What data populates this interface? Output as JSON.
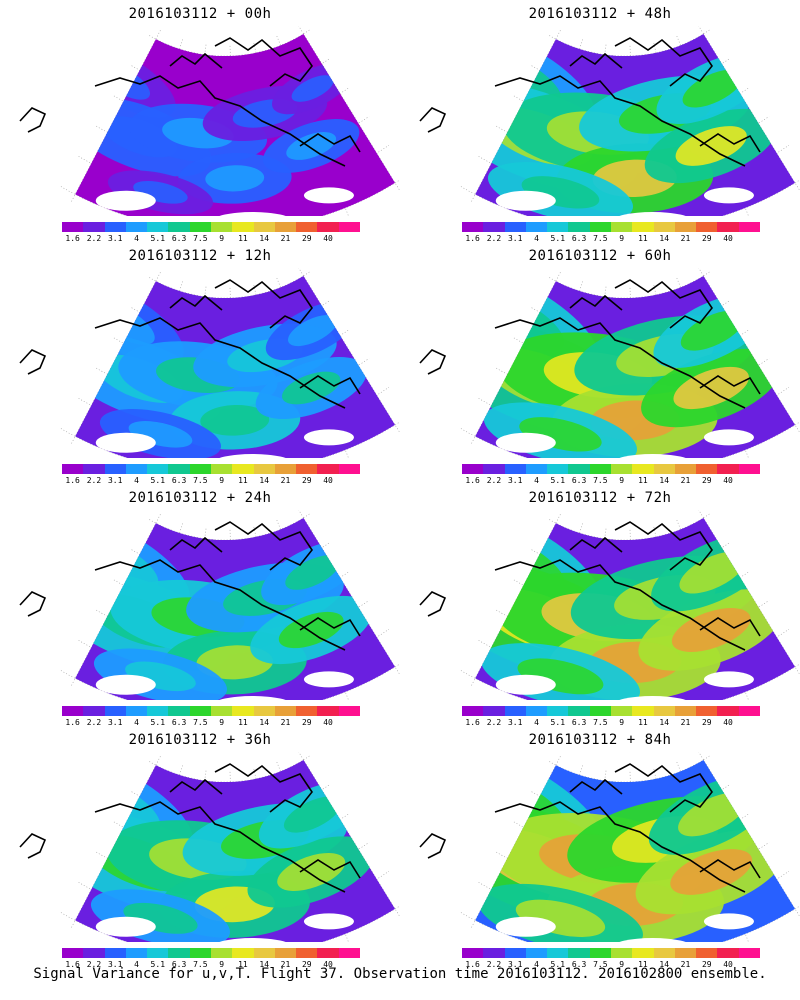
{
  "caption": "Signal Variance for u,v,T. Flight 37. Observation time 2016103112. 2016102800 ensemble.",
  "colorbar": {
    "labels": [
      "1.6",
      "2.2",
      "3.1",
      "4",
      "5.1",
      "6.3",
      "7.5",
      "9",
      "11",
      "14",
      "21",
      "29",
      "40"
    ],
    "colors": [
      "#9900cc",
      "#6a1fe0",
      "#2860ff",
      "#1e9cff",
      "#16c8d8",
      "#10c890",
      "#2cd62c",
      "#a8e030",
      "#e8e820",
      "#e8c840",
      "#e8a038",
      "#f06030",
      "#f22050",
      "#ff1090"
    ]
  },
  "panels": [
    {
      "title": "2016103112 + 00h",
      "lead": "00h",
      "level": 0.22
    },
    {
      "title": "2016103112 + 48h",
      "lead": "48h",
      "level": 0.62
    },
    {
      "title": "2016103112 + 12h",
      "lead": "12h",
      "level": 0.38
    },
    {
      "title": "2016103112 + 60h",
      "lead": "60h",
      "level": 0.7
    },
    {
      "title": "2016103112 + 24h",
      "lead": "24h",
      "level": 0.5
    },
    {
      "title": "2016103112 + 72h",
      "lead": "72h",
      "level": 0.76
    },
    {
      "title": "2016103112 + 36h",
      "lead": "36h",
      "level": 0.56
    },
    {
      "title": "2016103112 + 84h",
      "lead": "84h",
      "level": 0.82
    }
  ]
}
